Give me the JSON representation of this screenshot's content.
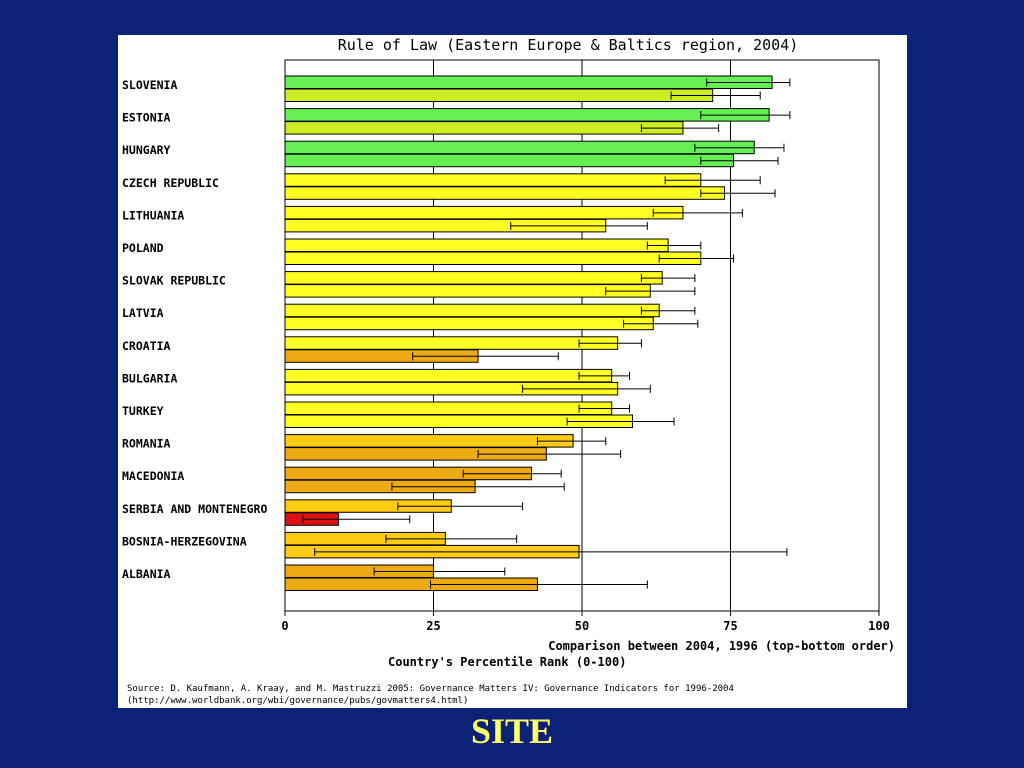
{
  "chart_data": {
    "type": "bar",
    "orientation": "horizontal",
    "title": "Rule of Law (Eastern Europe & Baltics region, 2004)",
    "xlabel": "Country's Percentile Rank (0-100)",
    "subtitle": "Comparison between 2004, 1996 (top-bottom order)",
    "xlim": [
      0,
      100
    ],
    "xticks": [
      0,
      25,
      50,
      75,
      100
    ],
    "grid": true,
    "series_names": [
      "2004",
      "1996"
    ],
    "color_key": {
      "green": "#66ee55",
      "yellow_green": "#ccee22",
      "yellow": "#ffff22",
      "gold": "#ffcc11",
      "orange": "#eeaa11",
      "red": "#dd1111"
    },
    "categories": [
      {
        "name": "SLOVENIA",
        "bars": [
          {
            "value": 82,
            "low": 71,
            "high": 85,
            "color": "#66ee55"
          },
          {
            "value": 72,
            "low": 65,
            "high": 80,
            "color": "#ccee22"
          }
        ]
      },
      {
        "name": "ESTONIA",
        "bars": [
          {
            "value": 81.5,
            "low": 70,
            "high": 85,
            "color": "#66ee55"
          },
          {
            "value": 67,
            "low": 60,
            "high": 73,
            "color": "#ccee22"
          }
        ]
      },
      {
        "name": "HUNGARY",
        "bars": [
          {
            "value": 79,
            "low": 69,
            "high": 84,
            "color": "#66ee55"
          },
          {
            "value": 75.5,
            "low": 70,
            "high": 83,
            "color": "#66ee55"
          }
        ]
      },
      {
        "name": "CZECH REPUBLIC",
        "bars": [
          {
            "value": 70,
            "low": 64,
            "high": 80,
            "color": "#ffff22"
          },
          {
            "value": 74,
            "low": 70,
            "high": 82.5,
            "color": "#ffff22"
          }
        ]
      },
      {
        "name": "LITHUANIA",
        "bars": [
          {
            "value": 67,
            "low": 62,
            "high": 77,
            "color": "#ffff22"
          },
          {
            "value": 54,
            "low": 38,
            "high": 61,
            "color": "#ffff22"
          }
        ]
      },
      {
        "name": "POLAND",
        "bars": [
          {
            "value": 64.5,
            "low": 61,
            "high": 70,
            "color": "#ffff22"
          },
          {
            "value": 70,
            "low": 63,
            "high": 75.5,
            "color": "#ffff22"
          }
        ]
      },
      {
        "name": "SLOVAK REPUBLIC",
        "bars": [
          {
            "value": 63.5,
            "low": 60,
            "high": 69,
            "color": "#ffff22"
          },
          {
            "value": 61.5,
            "low": 54,
            "high": 69,
            "color": "#ffff22"
          }
        ]
      },
      {
        "name": "LATVIA",
        "bars": [
          {
            "value": 63,
            "low": 60,
            "high": 69,
            "color": "#ffff22"
          },
          {
            "value": 62,
            "low": 57,
            "high": 69.5,
            "color": "#ffff22"
          }
        ]
      },
      {
        "name": "CROATIA",
        "bars": [
          {
            "value": 56,
            "low": 49.5,
            "high": 60,
            "color": "#ffff22"
          },
          {
            "value": 32.5,
            "low": 21.5,
            "high": 46,
            "color": "#eeaa11"
          }
        ]
      },
      {
        "name": "BULGARIA",
        "bars": [
          {
            "value": 55,
            "low": 49.5,
            "high": 58,
            "color": "#ffff22"
          },
          {
            "value": 56,
            "low": 40,
            "high": 61.5,
            "color": "#ffff22"
          }
        ]
      },
      {
        "name": "TURKEY",
        "bars": [
          {
            "value": 55,
            "low": 49.5,
            "high": 58,
            "color": "#ffff22"
          },
          {
            "value": 58.5,
            "low": 47.5,
            "high": 65.5,
            "color": "#ffff22"
          }
        ]
      },
      {
        "name": "ROMANIA",
        "bars": [
          {
            "value": 48.5,
            "low": 42.5,
            "high": 54,
            "color": "#ffcc11"
          },
          {
            "value": 44,
            "low": 32.5,
            "high": 56.5,
            "color": "#eeaa11"
          }
        ]
      },
      {
        "name": "MACEDONIA",
        "bars": [
          {
            "value": 41.5,
            "low": 30,
            "high": 46.5,
            "color": "#eeaa11"
          },
          {
            "value": 32,
            "low": 18,
            "high": 47,
            "color": "#eeaa11"
          }
        ]
      },
      {
        "name": "SERBIA AND MONTENEGRO",
        "bars": [
          {
            "value": 28,
            "low": 19,
            "high": 40,
            "color": "#ffcc11"
          },
          {
            "value": 9,
            "low": 3,
            "high": 21,
            "color": "#dd1111"
          }
        ]
      },
      {
        "name": "BOSNIA-HERZEGOVINA",
        "bars": [
          {
            "value": 27,
            "low": 17,
            "high": 39,
            "color": "#ffcc11"
          },
          {
            "value": 49.5,
            "low": 5,
            "high": 84.5,
            "color": "#ffcc11"
          }
        ]
      },
      {
        "name": "ALBANIA",
        "bars": [
          {
            "value": 25,
            "low": 15,
            "high": 37,
            "color": "#eeaa11"
          },
          {
            "value": 42.5,
            "low": 24.5,
            "high": 61,
            "color": "#eeaa11"
          }
        ]
      }
    ],
    "source_lines": [
      "Source: D. Kaufmann, A. Kraay, and M. Mastruzzi 2005: Governance Matters IV: Governance Indicators for 1996-2004",
      "(http://www.worldbank.org/wbi/governance/pubs/govmatters4.html)"
    ]
  },
  "footer": {
    "title": "SITE"
  }
}
